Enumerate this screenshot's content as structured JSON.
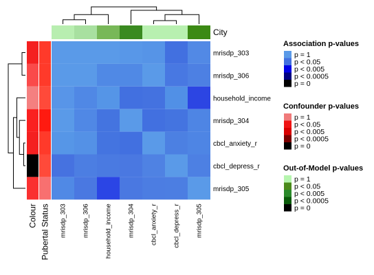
{
  "chart_data": {
    "type": "heatmap",
    "title": "",
    "rows": [
      "mrisdp_303",
      "mrisdp_306",
      "household_income",
      "mrisdp_304",
      "cbcl_anxiety_r",
      "cbcl_depress_r",
      "mrisdp_305"
    ],
    "columns": [
      "mrisdp_303",
      "mrisdp_306",
      "household_income",
      "mrisdp_304",
      "cbcl_anxiety_r",
      "cbcl_depress_r",
      "mrisdp_305"
    ],
    "cell_colors": [
      [
        "#5a9ae8",
        "#5a9ae8",
        "#5a9ae8",
        "#5897e8",
        "#5694e7",
        "#4270e0",
        "#5289e5"
      ],
      [
        "#5a9ae8",
        "#5a9ae8",
        "#5089e5",
        "#5089e5",
        "#5a9ae8",
        "#4878e2",
        "#4d80e3"
      ],
      [
        "#5895e8",
        "#5088e5",
        "#5595e7",
        "#4270e0",
        "#4472e0",
        "#5190e6",
        "#2c45e3"
      ],
      [
        "#5a9ae8",
        "#5088e5",
        "#4474e0",
        "#5a9ae8",
        "#4270e0",
        "#4474e0",
        "#4e85e4"
      ],
      [
        "#5696e7",
        "#5491e6",
        "#4474e0",
        "#4270e0",
        "#5a9ae8",
        "#4c80e2",
        "#4e85e4"
      ],
      [
        "#4672e0",
        "#4c7ee2",
        "#4a7ae1",
        "#4a78e1",
        "#4f82e3",
        "#5a9ae8",
        "#4d80e3"
      ],
      [
        "#5089e5",
        "#4a78e1",
        "#2b45e5",
        "#4a78e1",
        "#4c7de2",
        "#4c7ee2",
        "#5a9ae8"
      ]
    ],
    "row_annotations": [
      {
        "label": "Colour",
        "colors": [
          "#f42020",
          "#fa4a4a",
          "#f48080",
          "#fa2020",
          "#f42020",
          "#000000",
          "#fa3030"
        ]
      },
      {
        "label": "Pubertal Status",
        "colors": [
          "#ff3a2a",
          "#ff3a2a",
          "#ff4a3a",
          "#ff1a10",
          "#ff3a2a",
          "#ff4a3a",
          "#f87070"
        ]
      }
    ],
    "column_annotation": {
      "label": "City",
      "colors": [
        "#b8eeb0",
        "#a8e0a0",
        "#78b858",
        "#3a8a20",
        "#b8f0b0",
        "#b8f0b0",
        "#3c8a14"
      ]
    },
    "row_dendrogram": {
      "nodes": [
        {
          "a": 0,
          "b": 1,
          "h": 0.2
        },
        {
          "a": 4,
          "b": 5,
          "h": 0.1
        },
        {
          "a": 3,
          "b": 8,
          "h": 0.35
        },
        {
          "a": 2,
          "b": 9,
          "h": 0.5
        },
        {
          "a": 6,
          "b": 10,
          "h": 0.7
        },
        {
          "a": 7,
          "b": 11,
          "h": 1.0
        }
      ]
    },
    "column_dendrogram": {
      "nodes": [
        {
          "a": 0,
          "b": 1,
          "h": 0.25
        },
        {
          "a": 7,
          "b": 2,
          "h": 0.55
        },
        {
          "a": 4,
          "b": 5,
          "h": 0.2
        },
        {
          "a": 9,
          "b": 6,
          "h": 0.55
        },
        {
          "a": 3,
          "b": 10,
          "h": 0.8
        },
        {
          "a": 8,
          "b": 11,
          "h": 1.0
        }
      ]
    },
    "legends": [
      {
        "title": "Association p-values",
        "items": [
          {
            "label": "p = 1",
            "color": "#5a9ae8"
          },
          {
            "label": "p < 0.05",
            "color": "#4270e0"
          },
          {
            "label": "p < 0.005",
            "color": "#0000e6"
          },
          {
            "label": "p < 0.0005",
            "color": "#000080"
          },
          {
            "label": "p = 0",
            "color": "#000000"
          }
        ]
      },
      {
        "title": "Confounder p-values",
        "items": [
          {
            "label": "p = 1",
            "color": "#f07a7a"
          },
          {
            "label": "p < 0.05",
            "color": "#f01414"
          },
          {
            "label": "p < 0.005",
            "color": "#d90000"
          },
          {
            "label": "p < 0.0005",
            "color": "#7a0000"
          },
          {
            "label": "p = 0",
            "color": "#000000"
          }
        ]
      },
      {
        "title": "Out-of-Model p-values",
        "items": [
          {
            "label": "p = 1",
            "color": "#b6f5ae"
          },
          {
            "label": "p < 0.05",
            "color": "#4a8a1a"
          },
          {
            "label": "p < 0.005",
            "color": "#2a8a2a"
          },
          {
            "label": "p < 0.0005",
            "color": "#0a5a0a"
          },
          {
            "label": "p = 0",
            "color": "#000000"
          }
        ]
      }
    ]
  }
}
